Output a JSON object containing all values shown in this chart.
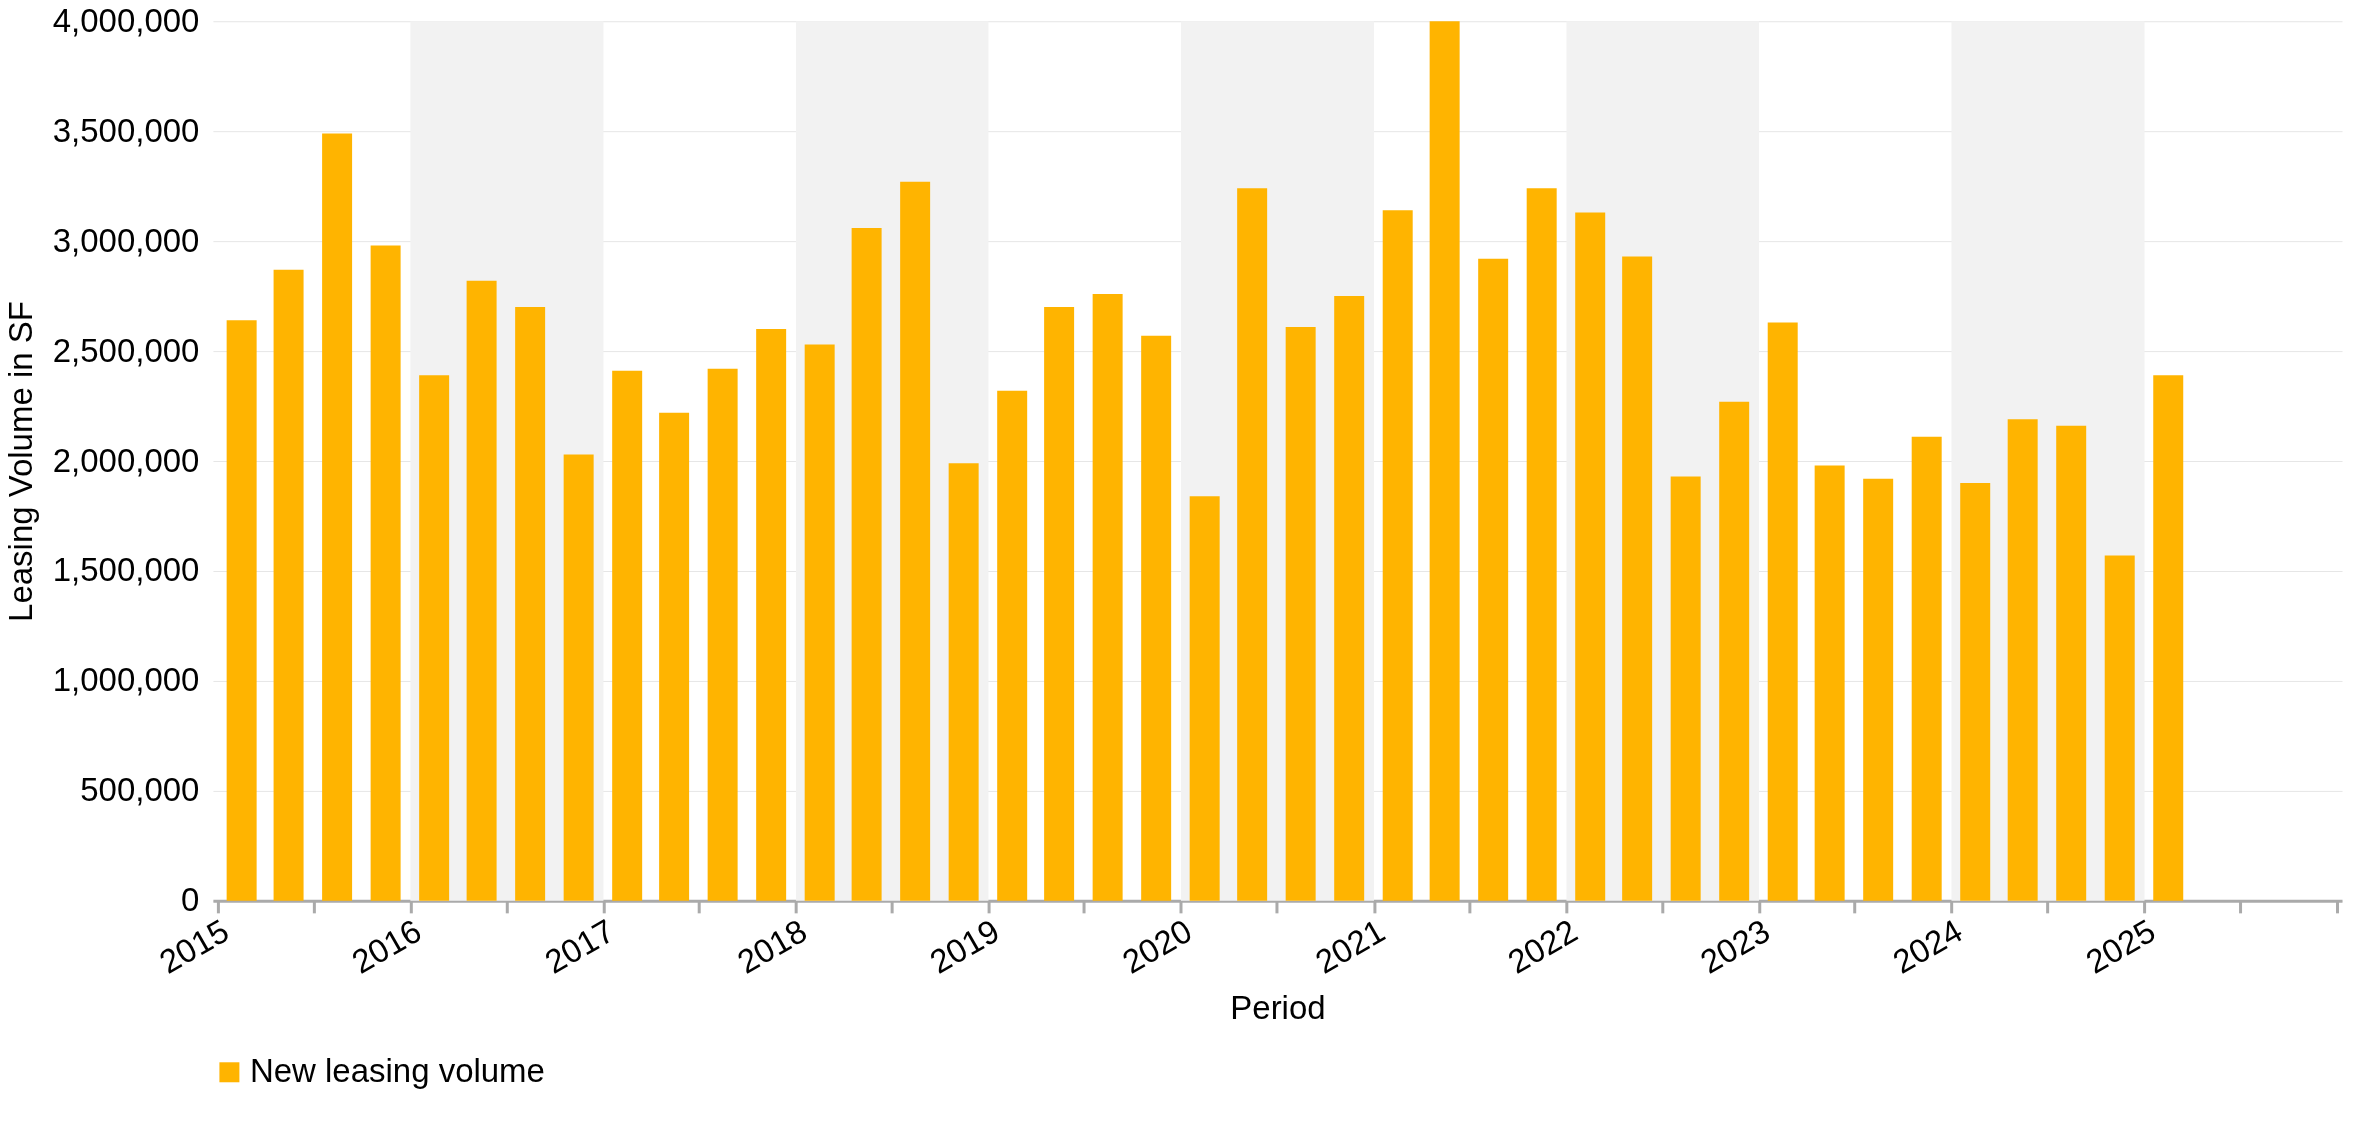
{
  "chart_data": {
    "type": "bar",
    "xlabel": "Period",
    "ylabel": "Leasing Volume in SF",
    "x": [
      "2015-02-15",
      "2015-05-15",
      "2015-08-15",
      "2015-11-15",
      "2016-02-15",
      "2016-05-15",
      "2016-08-15",
      "2016-11-15",
      "2017-02-15",
      "2017-05-15",
      "2017-08-15",
      "2017-11-15",
      "2018-02-15",
      "2018-05-15",
      "2018-08-15",
      "2018-11-15",
      "2019-02-15",
      "2019-05-15",
      "2019-08-15",
      "2019-11-15",
      "2020-02-15",
      "2020-05-15",
      "2020-08-15",
      "2020-11-15",
      "2021-02-15",
      "2021-05-15",
      "2021-08-15",
      "2021-11-15",
      "2022-02-15",
      "2022-05-15",
      "2022-08-15",
      "2022-11-15",
      "2023-02-15",
      "2023-05-15",
      "2023-08-15",
      "2023-11-15",
      "2024-02-15",
      "2024-05-15",
      "2024-08-15",
      "2024-11-15",
      "2025-02-15"
    ],
    "series": [
      {
        "name": "New leasing volume",
        "color": "#ffb400",
        "values": [
          2640000,
          2870000,
          3490000,
          2980000,
          2390000,
          2820000,
          2700000,
          2030000,
          2410000,
          2220000,
          2420000,
          2600000,
          2530000,
          3060000,
          3270000,
          1990000,
          2320000,
          2700000,
          2760000,
          2570000,
          1840000,
          3240000,
          2610000,
          2750000,
          3140000,
          4000000,
          2920000,
          3240000,
          3130000,
          2930000,
          1930000,
          2270000,
          2630000,
          1980000,
          1920000,
          2110000,
          1900000,
          2190000,
          2160000,
          1570000,
          2390000
        ]
      }
    ],
    "xlim": [
      "2015-01-01",
      "2026-01-01"
    ],
    "xticks": [
      {
        "value": "2015-01-01",
        "label": "2015"
      },
      {
        "value": "2015-07-01",
        "label": null
      },
      {
        "value": "2016-01-01",
        "label": "2016"
      },
      {
        "value": "2016-07-01",
        "label": null
      },
      {
        "value": "2017-01-01",
        "label": "2017"
      },
      {
        "value": "2017-07-01",
        "label": null
      },
      {
        "value": "2018-01-01",
        "label": "2018"
      },
      {
        "value": "2018-07-01",
        "label": null
      },
      {
        "value": "2019-01-01",
        "label": "2019"
      },
      {
        "value": "2019-07-01",
        "label": null
      },
      {
        "value": "2020-01-01",
        "label": "2020"
      },
      {
        "value": "2020-07-01",
        "label": null
      },
      {
        "value": "2021-01-01",
        "label": "2021"
      },
      {
        "value": "2021-07-01",
        "label": null
      },
      {
        "value": "2022-01-01",
        "label": "2022"
      },
      {
        "value": "2022-07-01",
        "label": null
      },
      {
        "value": "2023-01-01",
        "label": "2023"
      },
      {
        "value": "2023-07-01",
        "label": null
      },
      {
        "value": "2024-01-01",
        "label": "2024"
      },
      {
        "value": "2024-07-01",
        "label": null
      },
      {
        "value": "2025-01-01",
        "label": "2025"
      },
      {
        "value": "2025-07-01",
        "label": null
      },
      {
        "value": "2026-01-01",
        "label": null
      }
    ],
    "ylim": [
      0,
      4000000
    ],
    "yticks": [
      0,
      {
        "value": 500000,
        "label": "500,000"
      },
      {
        "value": 1000000,
        "label": "1,000,000"
      },
      {
        "value": 1500000,
        "label": "1,500,000"
      },
      {
        "value": 2000000,
        "label": "2,000,000"
      },
      {
        "value": 2500000,
        "label": "2,500,000"
      },
      {
        "value": 3000000,
        "label": "3,000,000"
      },
      {
        "value": 3500000,
        "label": "3,500,000"
      },
      {
        "value": 4000000,
        "label": "4,000,000"
      }
    ],
    "bands": [
      {
        "axis": "x",
        "from": "2016-01-01",
        "to": "2017-01-01",
        "color": "#f2f2f2"
      },
      {
        "axis": "x",
        "from": "2018-01-01",
        "to": "2019-01-01",
        "color": "#f2f2f2"
      },
      {
        "axis": "x",
        "from": "2020-01-01",
        "to": "2021-01-01",
        "color": "#f2f2f2"
      },
      {
        "axis": "x",
        "from": "2022-01-01",
        "to": "2023-01-01",
        "color": "#f2f2f2"
      },
      {
        "axis": "x",
        "from": "2024-01-01",
        "to": "2025-01-01",
        "color": "#f2f2f2"
      }
    ],
    "grid": "y",
    "legend": "bottom"
  }
}
